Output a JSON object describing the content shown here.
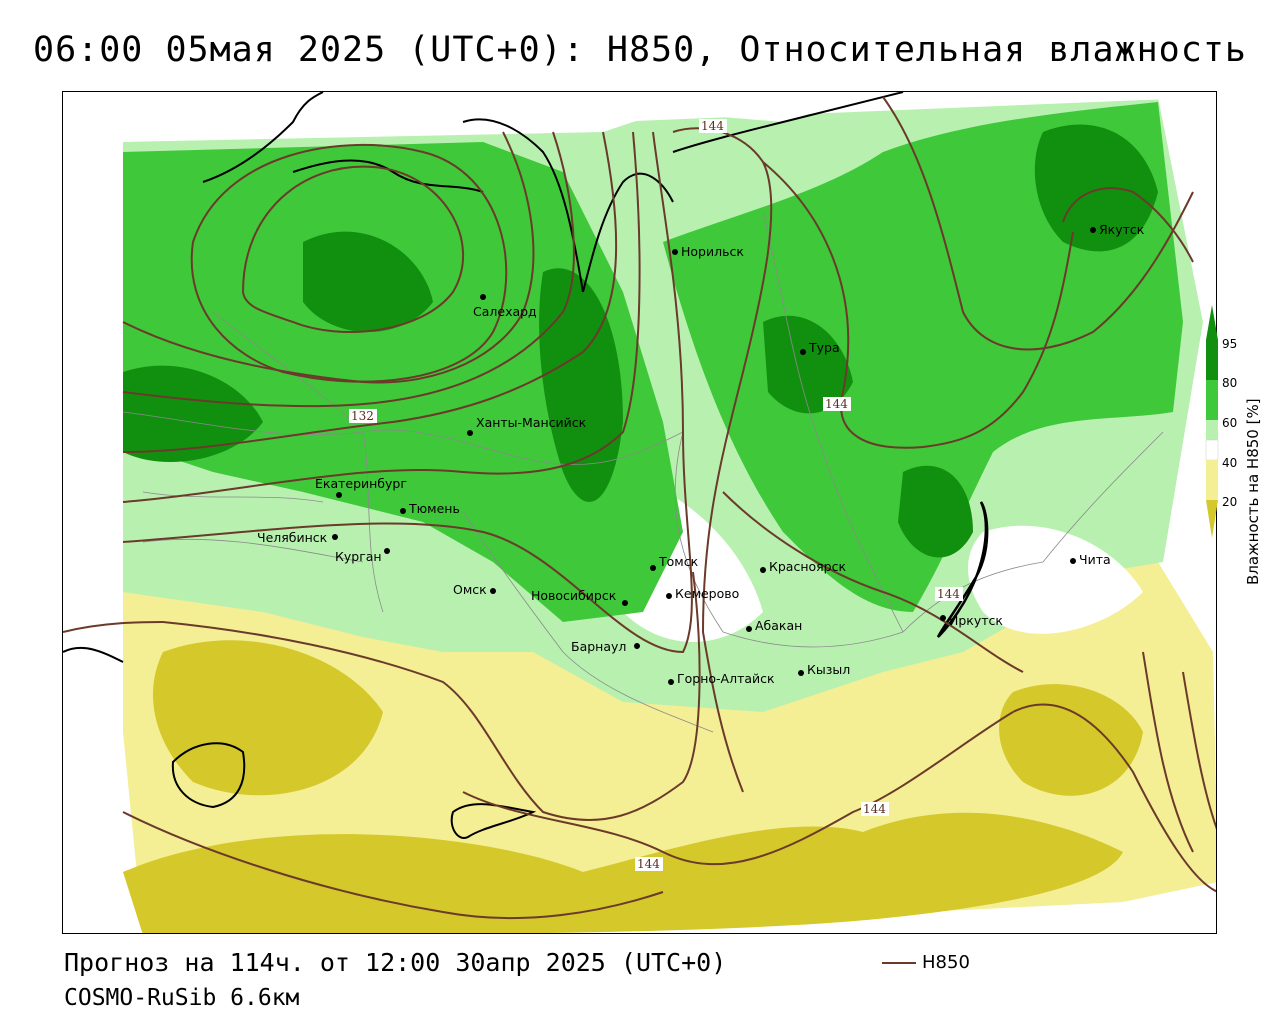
{
  "title": "06:00 05мая 2025 (UTC+0): H850, Относительная влажность",
  "footer": {
    "forecast": "Прогноз на 114ч. от 12:00 30апр 2025 (UTC+0)",
    "model": "COSMO-RuSib 6.6км"
  },
  "legend": {
    "h850_label": "H850",
    "h850_color": "#6b3a2a"
  },
  "colorbar": {
    "title": "Влажность на H850 [%]",
    "ticks": [
      "95",
      "80",
      "60",
      "40",
      "20"
    ],
    "colors": {
      "very_dry": "#d4c82a",
      "dry": "#f4ee94",
      "mid": "#ffffff",
      "moist": "#b8f0b0",
      "wet": "#3fc83a",
      "very_wet": "#119010"
    }
  },
  "cities": [
    {
      "name": "Норильск"
    },
    {
      "name": "Якутск"
    },
    {
      "name": "Салехард"
    },
    {
      "name": "Тура"
    },
    {
      "name": "Ханты-Мансийск"
    },
    {
      "name": "Екатеринбург"
    },
    {
      "name": "Тюмень"
    },
    {
      "name": "Челябинск"
    },
    {
      "name": "Курган"
    },
    {
      "name": "Омск"
    },
    {
      "name": "Новосибирск"
    },
    {
      "name": "Томск"
    },
    {
      "name": "Кемерово"
    },
    {
      "name": "Красноярск"
    },
    {
      "name": "Абакан"
    },
    {
      "name": "Барнаул"
    },
    {
      "name": "Горно-Алтайск"
    },
    {
      "name": "Кызыл"
    },
    {
      "name": "Иркутск"
    },
    {
      "name": "Чита"
    }
  ],
  "contour_labels": [
    "144",
    "132",
    "144",
    "144",
    "144",
    "144"
  ]
}
